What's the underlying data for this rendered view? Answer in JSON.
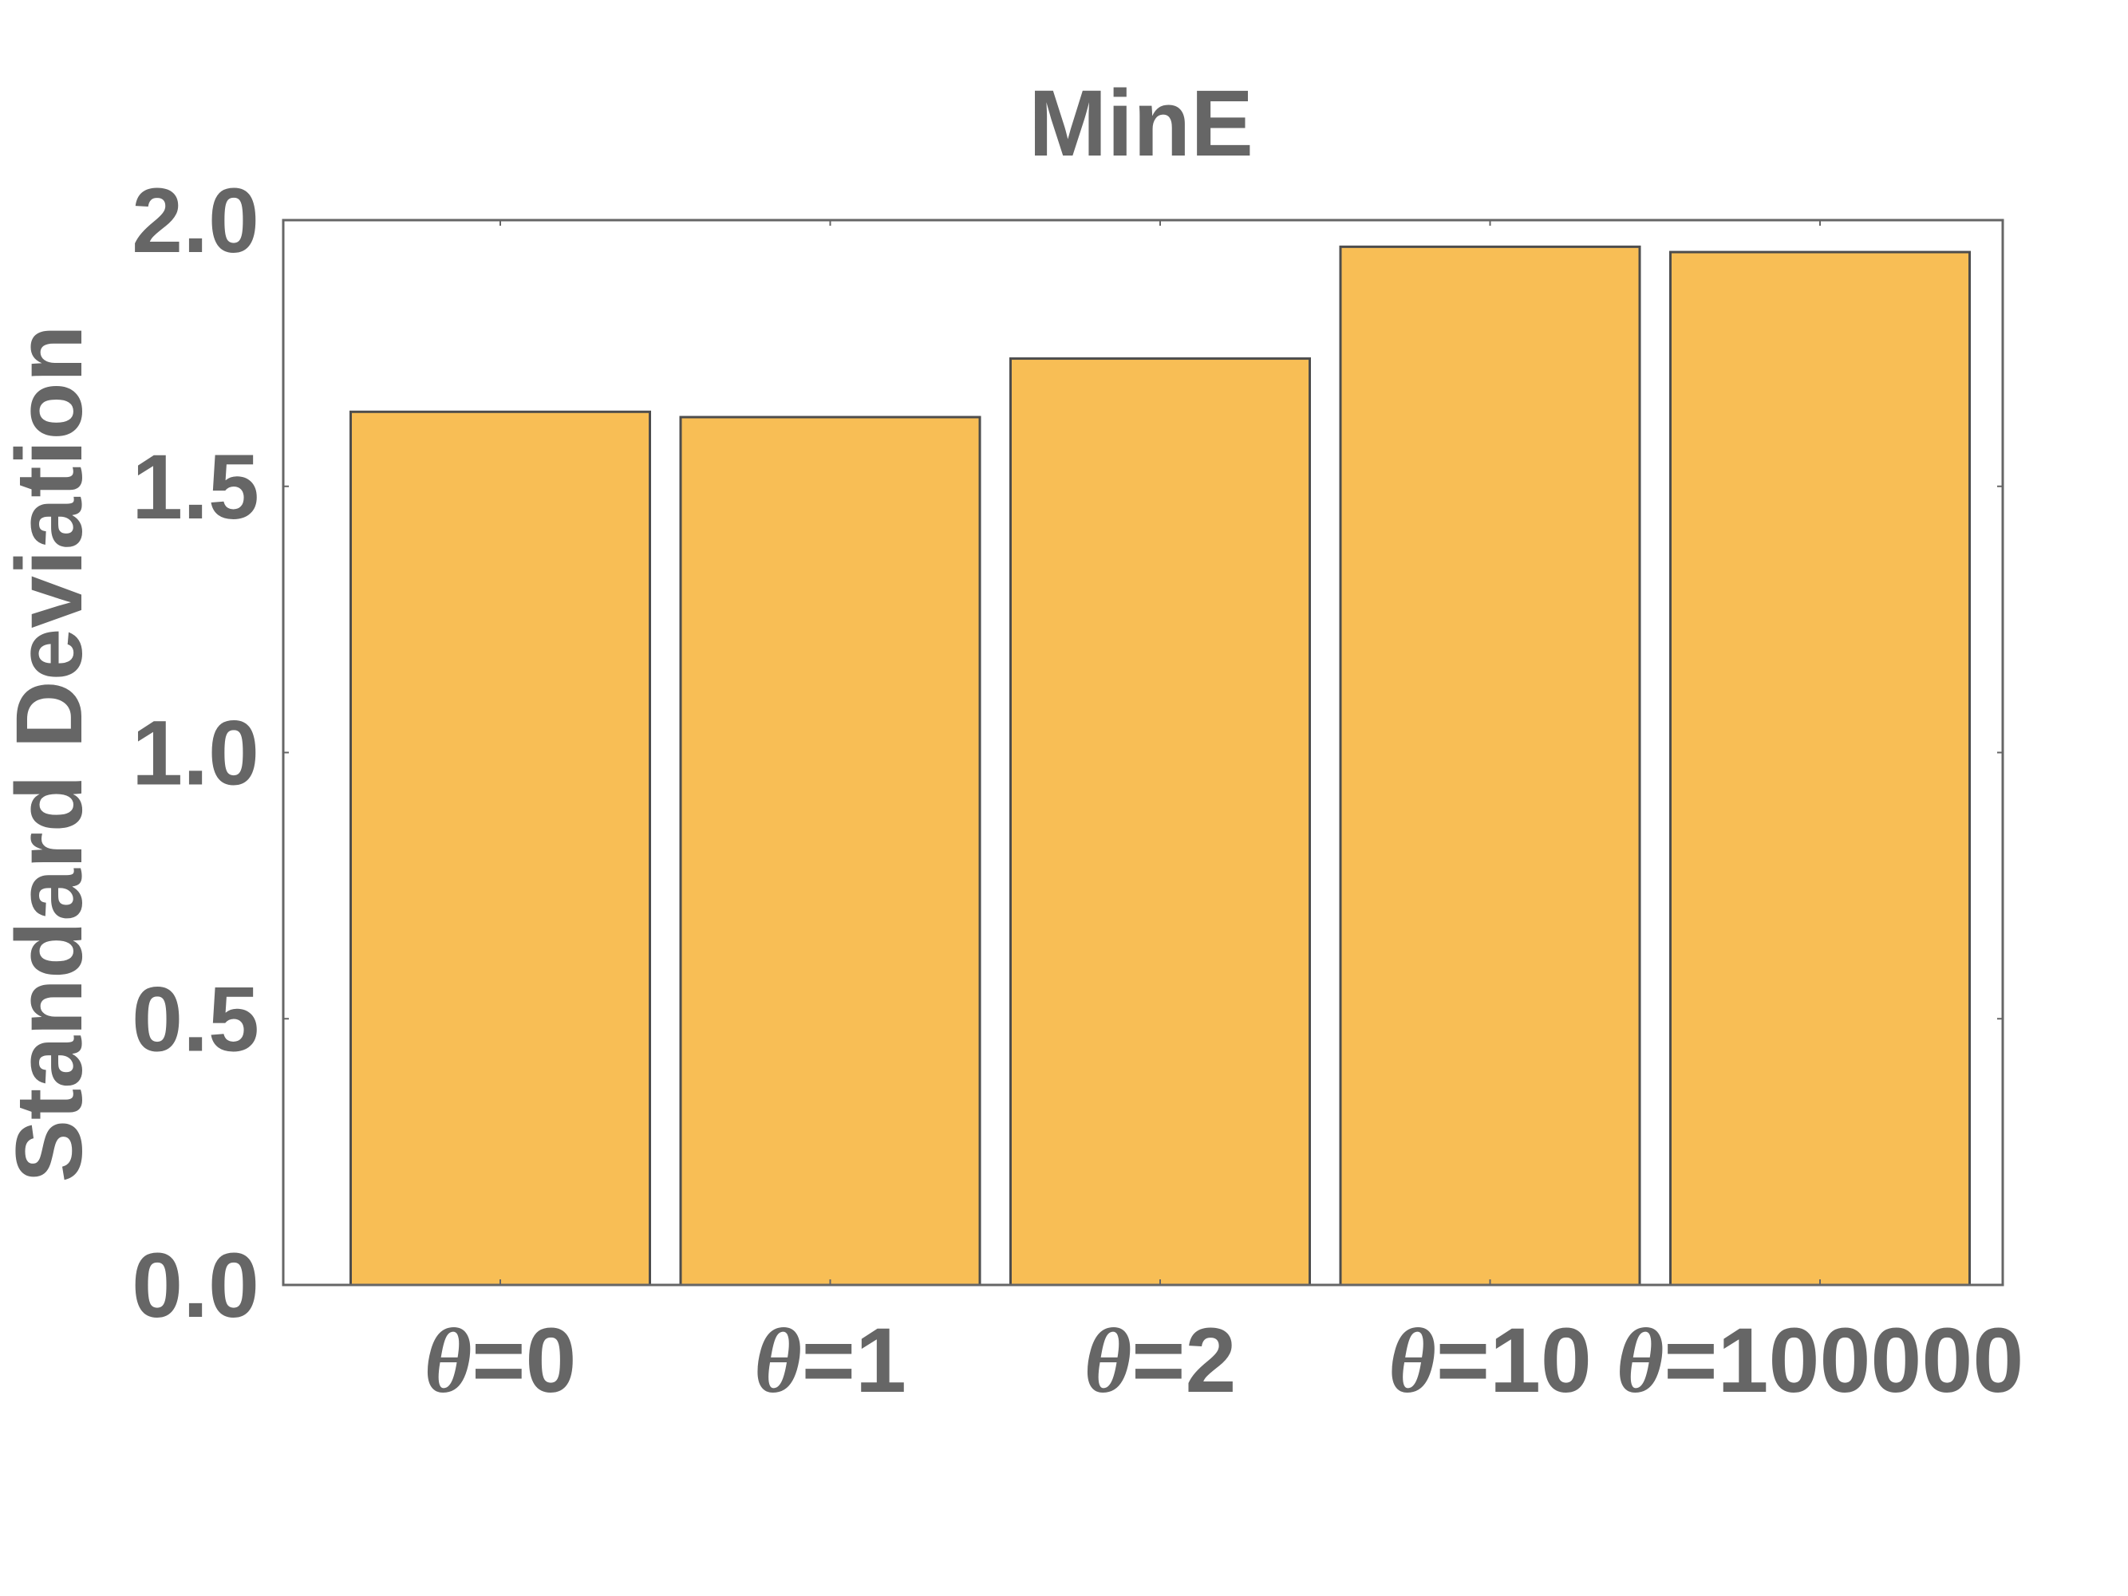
{
  "chart_data": {
    "type": "bar",
    "title": "MinE",
    "ylabel": "Standard Deviation",
    "xlabel": "",
    "categories": [
      {
        "symbol": "θ",
        "value": "=0"
      },
      {
        "symbol": "θ",
        "value": "=1"
      },
      {
        "symbol": "θ",
        "value": "=2"
      },
      {
        "symbol": "θ",
        "value": "=10"
      },
      {
        "symbol": "θ",
        "value": "=100000"
      }
    ],
    "values": [
      1.64,
      1.63,
      1.74,
      1.95,
      1.94
    ],
    "ylim": [
      0,
      2.0
    ],
    "yticks": [
      "0.0",
      "0.5",
      "1.0",
      "1.5",
      "2.0"
    ],
    "ytick_values": [
      0,
      0.5,
      1.0,
      1.5,
      2.0
    ],
    "grid": false,
    "legend": "none",
    "colors": {
      "bar_fill": "#F8BE55",
      "bar_stroke": "#4d4d4d",
      "text": "#666666",
      "frame": "#666666",
      "background": "#ffffff"
    }
  }
}
